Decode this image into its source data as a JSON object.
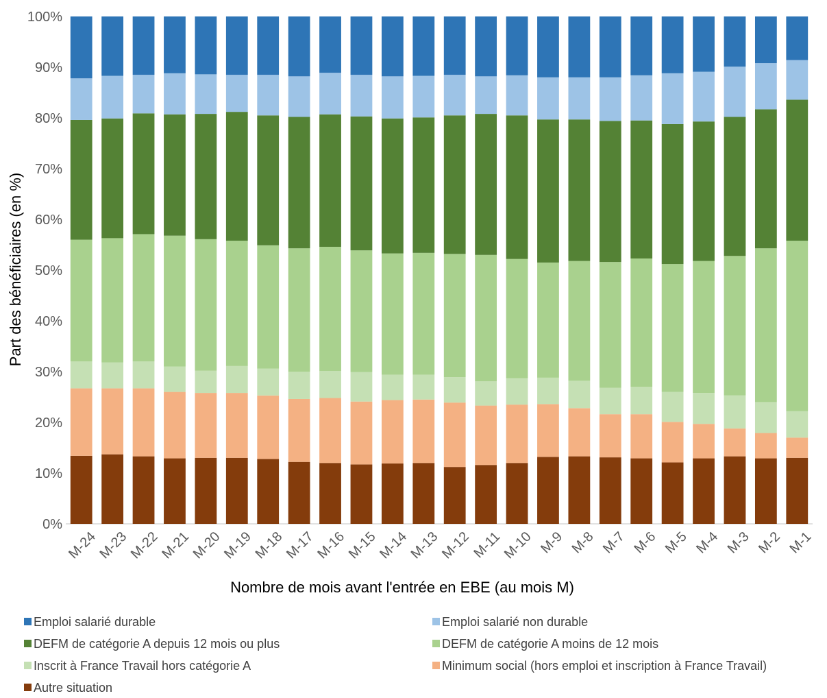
{
  "chart_data": {
    "type": "bar",
    "stacked": true,
    "percent_stacked": true,
    "title": "",
    "xlabel": "Nombre de mois avant l'entrée en EBE (au mois M)",
    "ylabel": "Part des bénéficiaires (en %)",
    "ylim": [
      0,
      100
    ],
    "y_ticks": [
      "0%",
      "10%",
      "20%",
      "30%",
      "40%",
      "50%",
      "60%",
      "70%",
      "80%",
      "90%",
      "100%"
    ],
    "grid": false,
    "legend_position": "bottom",
    "categories": [
      "M-24",
      "M-23",
      "M-22",
      "M-21",
      "M-20",
      "M-19",
      "M-18",
      "M-17",
      "M-16",
      "M-15",
      "M-14",
      "M-13",
      "M-12",
      "M-11",
      "M-10",
      "M-9",
      "M-8",
      "M-7",
      "M-6",
      "M-5",
      "M-4",
      "M-3",
      "M-2",
      "M-1"
    ],
    "series": [
      {
        "name": "Autre situation",
        "color": "#843C0C",
        "values": [
          13.4,
          13.7,
          13.3,
          12.9,
          13.0,
          13.0,
          12.8,
          12.2,
          12.0,
          11.7,
          11.9,
          12.0,
          11.2,
          11.6,
          12.0,
          13.2,
          13.3,
          13.1,
          12.9,
          12.1,
          12.9,
          13.3,
          12.9,
          13.0
        ]
      },
      {
        "name": "Minimum social (hors emploi et inscription à France Travail)",
        "color": "#F4B183",
        "values": [
          13.3,
          13.0,
          13.4,
          13.1,
          12.8,
          12.8,
          12.5,
          12.4,
          12.8,
          12.4,
          12.5,
          12.5,
          12.7,
          11.7,
          11.5,
          10.4,
          9.5,
          8.5,
          8.7,
          8.0,
          6.8,
          5.5,
          5.0,
          4.0
        ]
      },
      {
        "name": "Inscrit à France Travail hors catégorie A",
        "color": "#C5E0B4",
        "values": [
          5.3,
          5.1,
          5.3,
          5.0,
          4.4,
          5.3,
          5.3,
          5.4,
          5.3,
          5.8,
          5.0,
          4.9,
          5.0,
          4.8,
          5.2,
          5.2,
          5.4,
          5.2,
          5.4,
          5.9,
          6.1,
          6.5,
          6.1,
          5.2
        ]
      },
      {
        "name": "DEFM de catégorie A moins de 12 mois",
        "color": "#A9D18E",
        "values": [
          24.0,
          24.5,
          25.1,
          25.8,
          25.9,
          24.7,
          24.3,
          24.3,
          24.5,
          24.0,
          23.9,
          24.0,
          24.3,
          24.9,
          23.5,
          22.7,
          23.6,
          24.8,
          25.3,
          25.2,
          26.0,
          27.5,
          30.3,
          33.6
        ]
      },
      {
        "name": "DEFM de catégorie A depuis 12 mois ou plus",
        "color": "#548235",
        "values": [
          23.6,
          23.6,
          23.8,
          23.9,
          24.7,
          25.4,
          25.6,
          25.9,
          26.1,
          26.4,
          26.6,
          26.7,
          27.3,
          27.8,
          28.3,
          28.2,
          27.9,
          27.8,
          27.2,
          27.6,
          27.5,
          27.4,
          27.4,
          27.8
        ]
      },
      {
        "name": "Emploi salarié non durable",
        "color": "#9DC3E6",
        "values": [
          8.2,
          8.4,
          7.6,
          8.1,
          7.8,
          7.3,
          8.0,
          8.0,
          8.2,
          8.2,
          8.3,
          8.2,
          8.0,
          7.4,
          7.9,
          8.3,
          8.3,
          8.6,
          8.9,
          10.0,
          9.8,
          9.9,
          9.1,
          7.8
        ]
      },
      {
        "name": "Emploi salarié durable",
        "color": "#2E75B6",
        "values": [
          12.2,
          11.7,
          11.5,
          11.2,
          11.4,
          11.5,
          11.5,
          11.8,
          11.1,
          11.5,
          11.8,
          11.7,
          11.5,
          11.8,
          11.6,
          12.0,
          12.0,
          12.0,
          11.6,
          11.2,
          10.9,
          9.9,
          9.2,
          8.6
        ]
      }
    ]
  },
  "legend": {
    "items": [
      {
        "label": "Emploi salarié durable",
        "color": "#2E75B6"
      },
      {
        "label": "Emploi salarié non durable",
        "color": "#9DC3E6"
      },
      {
        "label": "DEFM de catégorie A depuis 12 mois ou plus",
        "color": "#548235"
      },
      {
        "label": "DEFM de catégorie A moins de 12 mois",
        "color": "#A9D18E"
      },
      {
        "label": "Inscrit à France Travail hors catégorie A",
        "color": "#C5E0B4"
      },
      {
        "label": "Minimum social (hors emploi et inscription à France Travail)",
        "color": "#F4B183"
      },
      {
        "label": "Autre situation",
        "color": "#843C0C"
      }
    ]
  }
}
